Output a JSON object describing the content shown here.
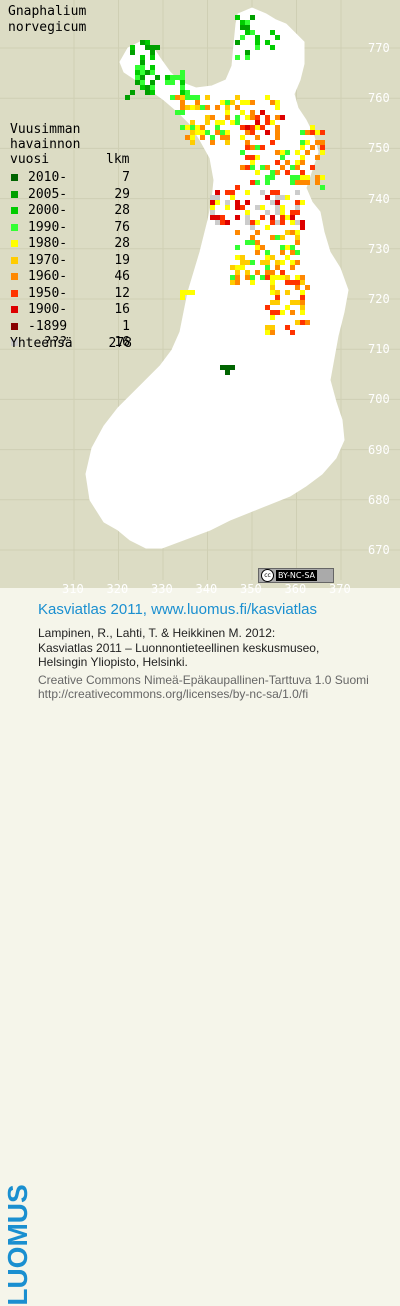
{
  "species": [
    "Gnaphalium",
    "norvegicum"
  ],
  "legend_header": [
    "Vuusimman",
    "havainnon",
    "vuosi"
  ],
  "legend_count_header": "lkm",
  "legend": [
    {
      "label": "2010-",
      "count": "7",
      "color": "#006400"
    },
    {
      "label": "2005-",
      "count": "29",
      "color": "#00a000"
    },
    {
      "label": "2000-",
      "count": "28",
      "color": "#00cc00"
    },
    {
      "label": "1990-",
      "count": "76",
      "color": "#33ff33"
    },
    {
      "label": "1980-",
      "count": "28",
      "color": "#ffff00"
    },
    {
      "label": "1970-",
      "count": "19",
      "color": "#ffcc00"
    },
    {
      "label": "1960-",
      "count": "46",
      "color": "#ff8800"
    },
    {
      "label": "1950-",
      "count": "12",
      "color": "#ff3300"
    },
    {
      "label": "1900-",
      "count": "16",
      "color": "#dd0000"
    },
    {
      "label": "-1899",
      "count": "1",
      "color": "#880000"
    },
    {
      "label": "  ???",
      "count": "16",
      "color": "#cccccc"
    }
  ],
  "total_label": "Yhteensä",
  "total_count": "278",
  "grid_y": [
    "770",
    "760",
    "750",
    "740",
    "730",
    "720",
    "710",
    "700",
    "690",
    "680",
    "670"
  ],
  "grid_x": [
    "310",
    "320",
    "330",
    "340",
    "350",
    "360",
    "370"
  ],
  "cc_badge": "BY-NC-SA",
  "cc_badge_mark": "cc",
  "logo": "LUOMUS",
  "footer": {
    "title": "Kasviatlas 2011, www.luomus.fi/kasviatlas",
    "citation1": "Lampinen, R., Lahti, T. & Heikkinen M. 2012:",
    "citation2": "Kasviatlas 2011 – Luonnontieteellinen keskusmuseo,",
    "citation3": "Helsingin Yliopisto, Helsinki.",
    "license1": "Creative Commons Nimeä-Epäkaupallinen-Tarttuva 1.0 Suomi",
    "license2": "http://creativecommons.org/licenses/by-nc-sa/1.0/fi"
  },
  "colors": {
    "background": "#dcdcc4",
    "land": "#ffffff",
    "logo_blue": "#1a8fd0"
  }
}
